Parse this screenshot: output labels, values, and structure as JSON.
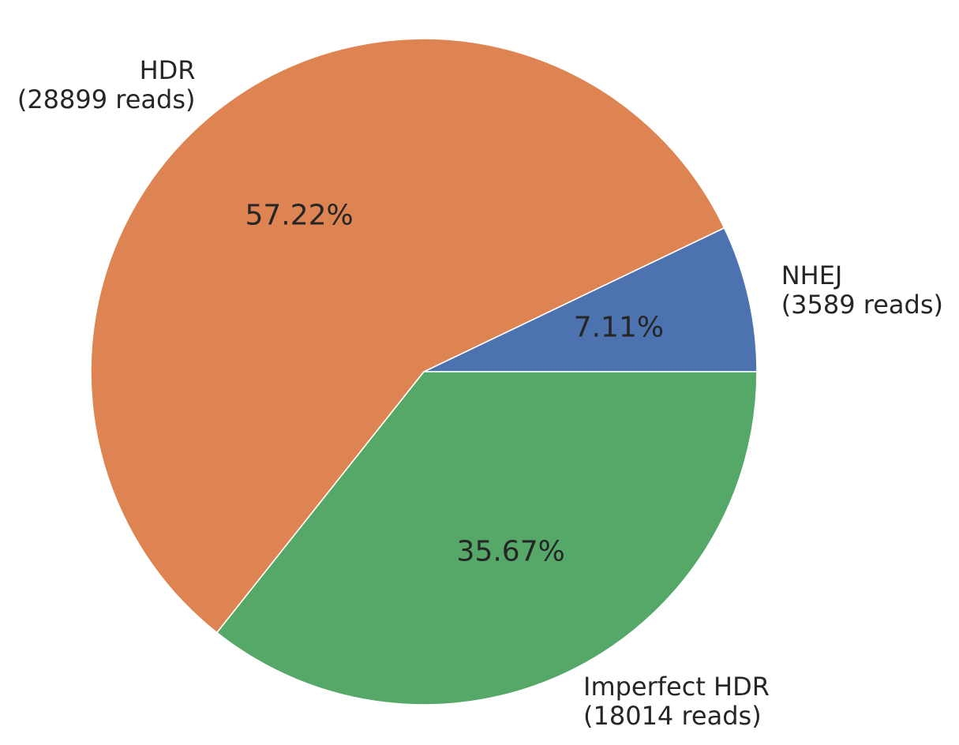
{
  "chart_data": {
    "type": "pie",
    "slices": [
      {
        "name": "NHEJ",
        "label_lines": [
          "NHEJ",
          "(3589 reads)"
        ],
        "reads": 3589,
        "percent": 7.11,
        "percent_label": "7.11%",
        "color": "#4C72B0"
      },
      {
        "name": "HDR",
        "label_lines": [
          "HDR",
          "(28899 reads)"
        ],
        "reads": 28899,
        "percent": 57.22,
        "percent_label": "57.22%",
        "color": "#DD8452"
      },
      {
        "name": "Imperfect HDR",
        "label_lines": [
          "Imperfect HDR",
          "(18014 reads)"
        ],
        "reads": 18014,
        "percent": 35.67,
        "percent_label": "35.67%",
        "color": "#55A868"
      }
    ],
    "start_angle_deg": 0,
    "direction": "counterclockwise",
    "title": "",
    "legend": "none"
  }
}
